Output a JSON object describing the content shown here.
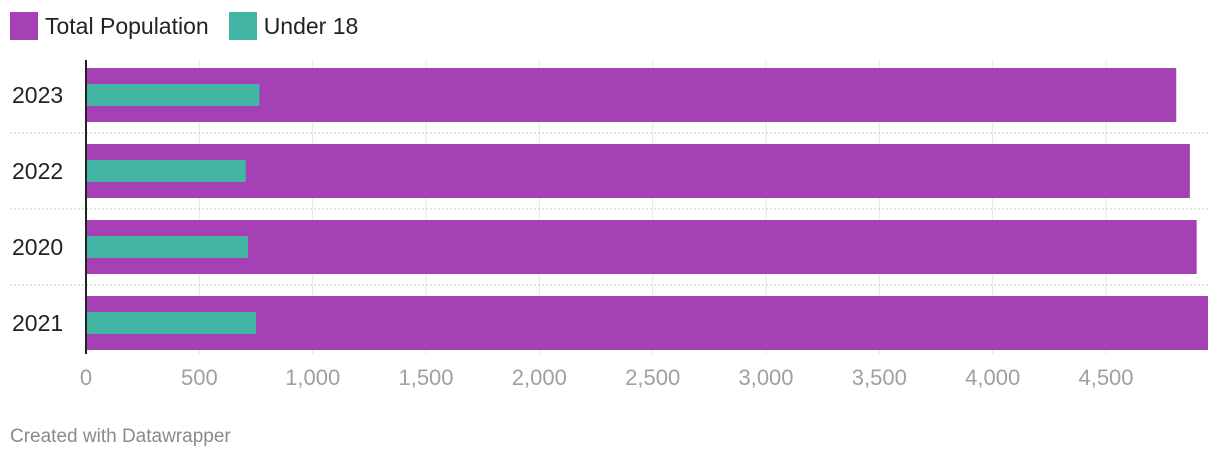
{
  "legend": {
    "items": [
      {
        "label": "Total Population",
        "color": "#a541b5"
      },
      {
        "label": "Under 18",
        "color": "#42b5a5"
      }
    ]
  },
  "footer": {
    "text": "Created with Datawrapper"
  },
  "chart_data": {
    "type": "bar",
    "orientation": "horizontal",
    "grouping": "overlay",
    "title": "",
    "xlabel": "",
    "ylabel": "",
    "categories": [
      "2023",
      "2022",
      "2020",
      "2021"
    ],
    "series": [
      {
        "name": "Total Population",
        "color": "#a541b5",
        "values": [
          4810,
          4870,
          4900,
          4950
        ]
      },
      {
        "name": "Under 18",
        "color": "#42b5a5",
        "values": [
          765,
          705,
          715,
          750
        ]
      }
    ],
    "xlim": [
      0,
      4950
    ],
    "xticks": [
      0,
      500,
      1000,
      1500,
      2000,
      2500,
      3000,
      3500,
      4000,
      4500
    ],
    "xtick_labels": [
      "0",
      "500",
      "1,000",
      "1,500",
      "2,000",
      "2,500",
      "3,000",
      "3,500",
      "4,000",
      "4,500"
    ],
    "grid": true,
    "legend_position": "top-left"
  }
}
